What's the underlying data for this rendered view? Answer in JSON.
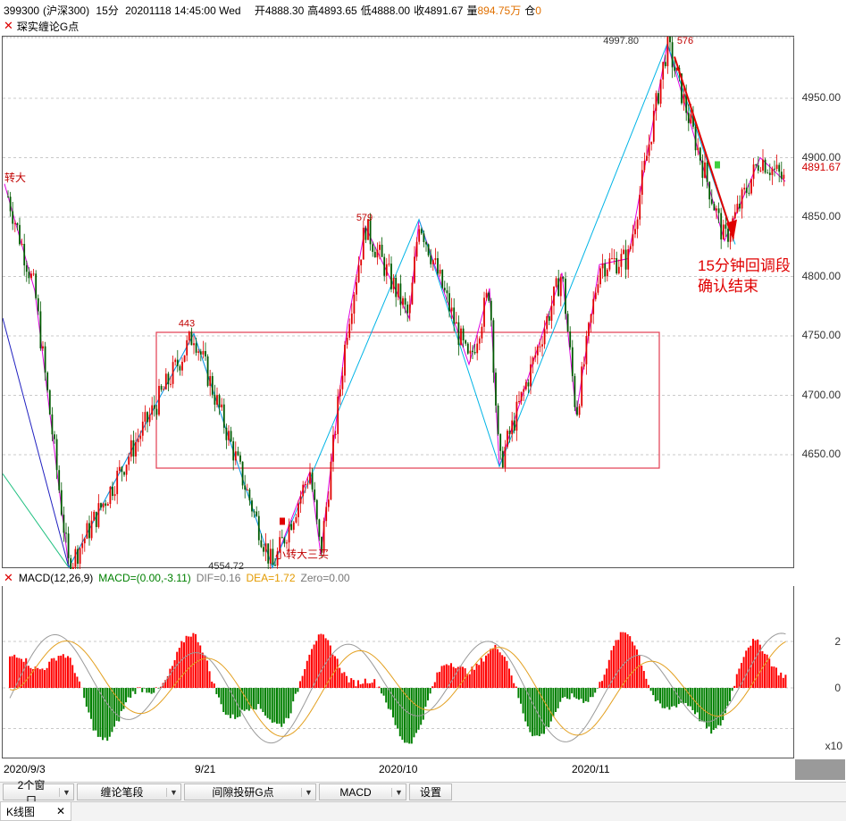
{
  "header": {
    "code": "399300",
    "name": "(沪深300)",
    "period": "15分",
    "datetime": "20201118 14:45:00 Wed",
    "open": "开4888.30",
    "high": "高4893.65",
    "low": "低4888.00",
    "close": "收4891.67",
    "volume_label": "量",
    "volume": "894.75万",
    "hold_label": "仓",
    "hold": "0"
  },
  "main_indicator": {
    "name": "琛实缠论G点"
  },
  "main_chart": {
    "price_ticks": [
      "4950.00",
      "4900.00",
      "4850.00",
      "4800.00",
      "4750.00",
      "4700.00",
      "4650.00"
    ],
    "price_tick_values": [
      4950,
      4900,
      4850,
      4800,
      4750,
      4700,
      4650
    ],
    "current_price": "4891.67",
    "current_price_value": 4891.67,
    "annotations": {
      "left_signal": "转大",
      "high_label": "4997.80",
      "low_label": "4554.72",
      "pivot_443": "443",
      "pivot_579": "579",
      "pivot_576": "576",
      "small_turn": "小转大三买",
      "note_line1": "15分钟回调段",
      "note_line2": "确认结束"
    },
    "colors": {
      "up": "#e00000",
      "down": "#005a00",
      "stroke_line": "#e000e0",
      "segment_line": "#00b4e6",
      "box": "#e23c50",
      "arrow": "#e00000"
    }
  },
  "macd": {
    "title": "MACD(12,26,9)",
    "macd_label": "MACD=(0.00,-3.11)",
    "dif_label": "DIF=0.16",
    "dea_label": "DEA=1.72",
    "zero_label": "Zero=0.00",
    "ticks": [
      "2",
      "0"
    ],
    "multiplier": "x10",
    "colors": {
      "pos": "#ff0000",
      "neg": "#008000",
      "dif": "#9a9a9a",
      "dea": "#e3a020"
    }
  },
  "x_axis": {
    "labels": [
      "2020/9/3",
      "9/21",
      "2020/10",
      "2020/11"
    ]
  },
  "toolbar": {
    "window_count": "2个窗口",
    "stroke_mode": "缠论笔段",
    "indicator": "间隙投研G点",
    "sub_indicator": "MACD",
    "settings": "设置"
  },
  "tabs": {
    "kline": "K线图"
  }
}
